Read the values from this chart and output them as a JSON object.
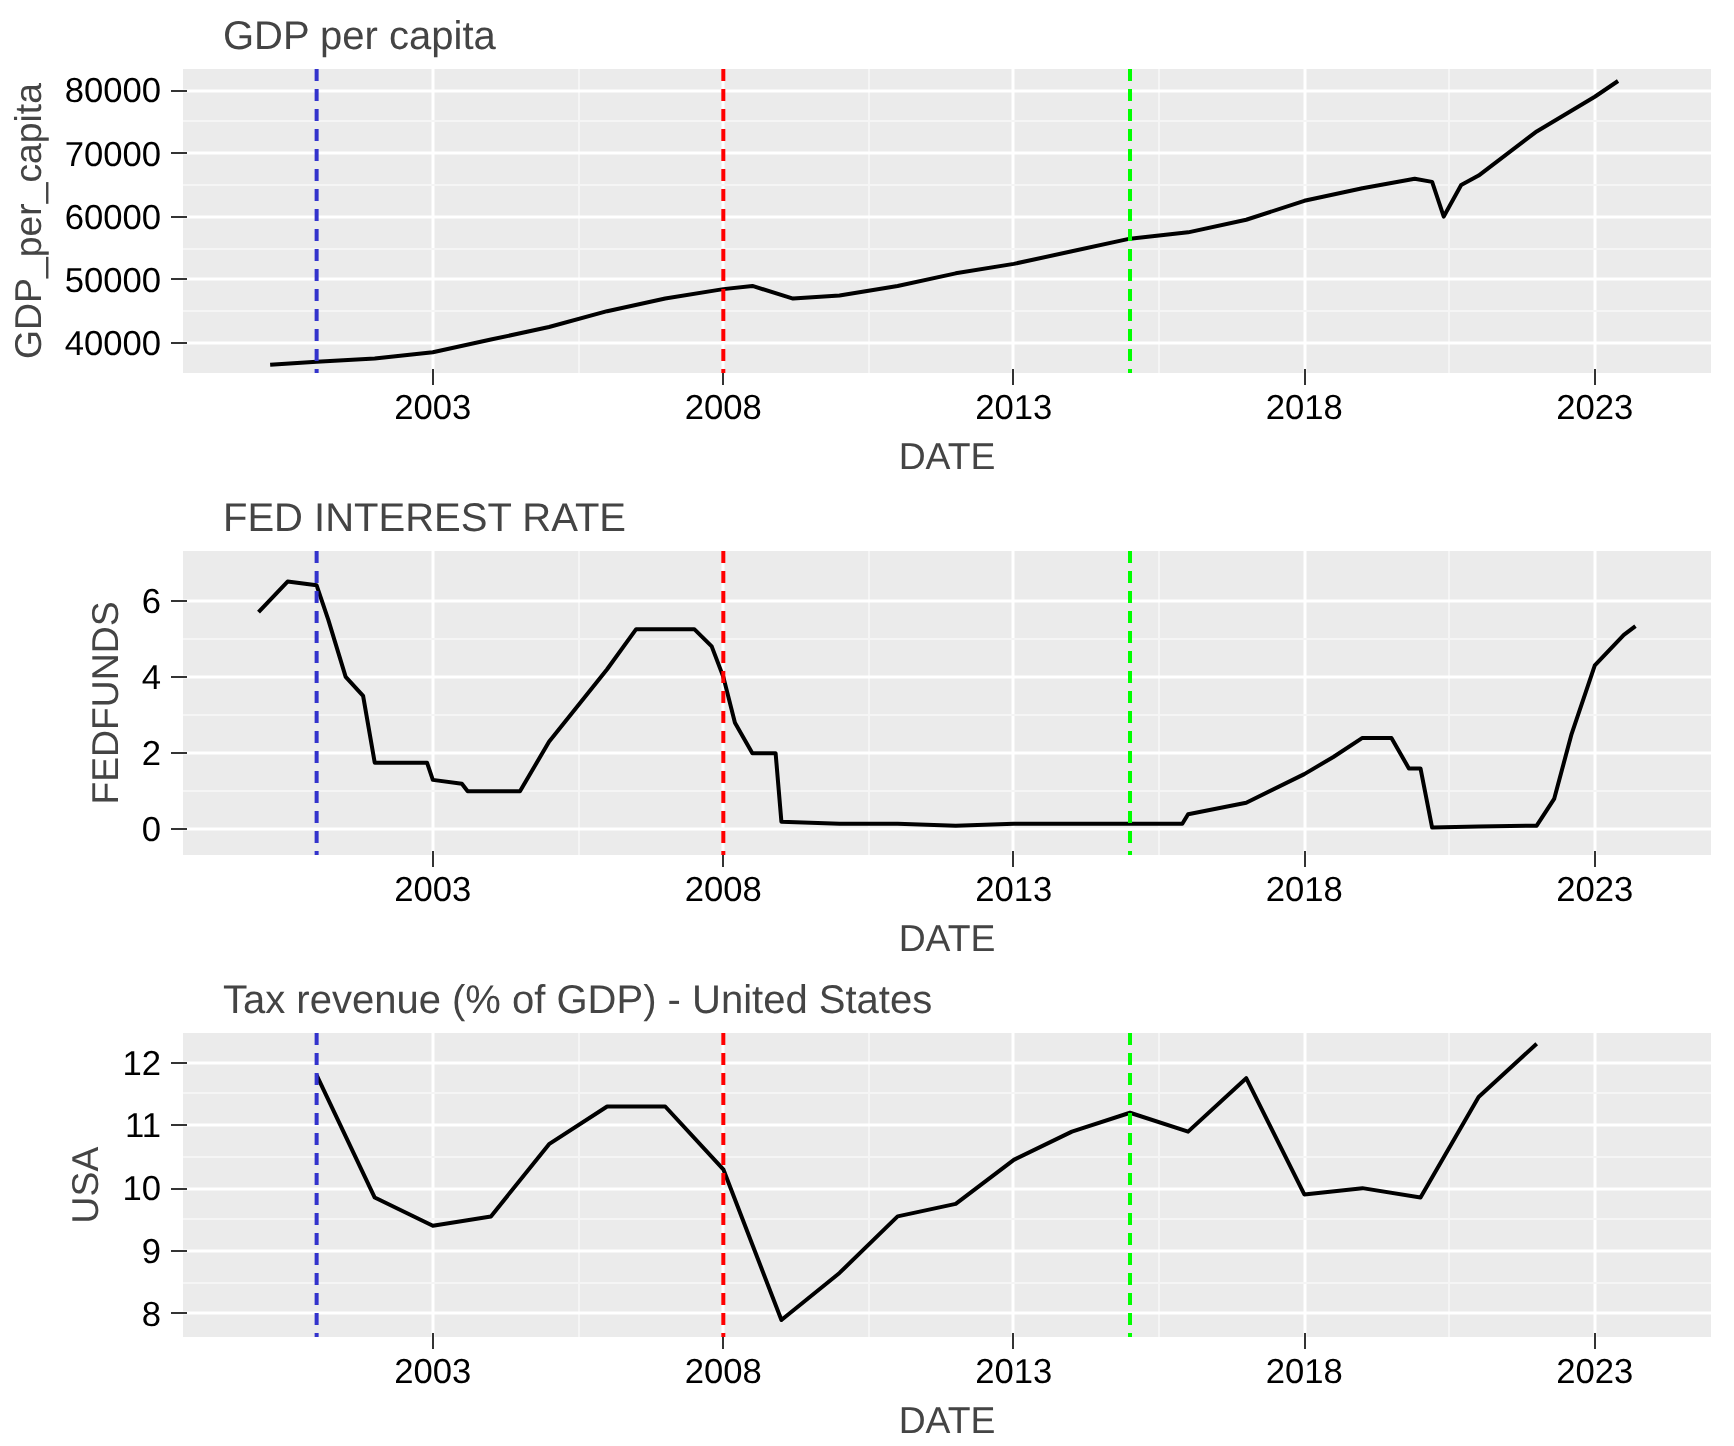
{
  "chart_data": [
    {
      "type": "line",
      "title": "GDP per capita",
      "xlabel": "DATE",
      "ylabel": "GDP_per_capita",
      "xlim": [
        1998.7,
        2025.0
      ],
      "xticks": [
        2003,
        2008,
        2013,
        2018,
        2023
      ],
      "ylim": [
        35200,
        83400
      ],
      "yticks": [
        40000,
        50000,
        60000,
        70000,
        80000
      ],
      "grid": true,
      "line_style": "solid",
      "x": [
        2000.2,
        2001,
        2002,
        2003,
        2004,
        2005,
        2006,
        2007,
        2008,
        2008.5,
        2009.2,
        2010,
        2011,
        2012,
        2013,
        2014,
        2015,
        2016,
        2017,
        2018,
        2019,
        2019.9,
        2020.2,
        2020.4,
        2020.7,
        2021,
        2022,
        2023,
        2023.4
      ],
      "series": [
        {
          "color": "#000000",
          "values": [
            36500,
            37000,
            37500,
            38500,
            40500,
            42500,
            45000,
            47000,
            48500,
            49000,
            47000,
            47500,
            49000,
            51000,
            52500,
            54500,
            56500,
            57500,
            59500,
            62500,
            64500,
            66000,
            65500,
            60000,
            65000,
            66500,
            73500,
            79000,
            81500
          ]
        }
      ],
      "ref_lines": [
        {
          "axis": "x",
          "value": 2001,
          "color": "#3333cc",
          "line_style": "dashed"
        },
        {
          "axis": "x",
          "value": 2008,
          "color": "#ff0000",
          "line_style": "dashed"
        },
        {
          "axis": "x",
          "value": 2015,
          "color": "#00ff00",
          "line_style": "dashed"
        }
      ]
    },
    {
      "type": "line",
      "title": "FED INTEREST RATE",
      "xlabel": "DATE",
      "ylabel": "FEDFUNDS",
      "xlim": [
        1998.7,
        2025.0
      ],
      "xticks": [
        2003,
        2008,
        2013,
        2018,
        2023
      ],
      "ylim": [
        -0.67,
        7.3
      ],
      "yticks": [
        0,
        2,
        4,
        6
      ],
      "grid": true,
      "line_style": "solid",
      "x": [
        2000.0,
        2000.5,
        2001.0,
        2001.2,
        2001.5,
        2001.8,
        2002.0,
        2002.9,
        2003.0,
        2003.5,
        2003.6,
        2004.5,
        2005,
        2006,
        2006.5,
        2007.5,
        2007.8,
        2008.0,
        2008.2,
        2008.5,
        2008.9,
        2009.0,
        2010,
        2011,
        2012,
        2013,
        2015.9,
        2016.0,
        2017,
        2018,
        2018.5,
        2019.0,
        2019.5,
        2019.8,
        2020.0,
        2020.2,
        2021,
        2022.0,
        2022.3,
        2022.6,
        2023.0,
        2023.5,
        2023.7
      ],
      "series": [
        {
          "color": "#000000",
          "values": [
            5.7,
            6.5,
            6.4,
            5.5,
            4.0,
            3.5,
            1.75,
            1.75,
            1.3,
            1.2,
            1.0,
            1.0,
            2.3,
            4.2,
            5.25,
            5.25,
            4.8,
            4.0,
            2.8,
            2.0,
            2.0,
            0.2,
            0.15,
            0.15,
            0.1,
            0.15,
            0.15,
            0.4,
            0.7,
            1.45,
            1.9,
            2.4,
            2.4,
            1.6,
            1.6,
            0.05,
            0.08,
            0.1,
            0.8,
            2.5,
            4.3,
            5.1,
            5.33
          ]
        }
      ],
      "ref_lines": [
        {
          "axis": "x",
          "value": 2001,
          "color": "#3333cc",
          "line_style": "dashed"
        },
        {
          "axis": "x",
          "value": 2008,
          "color": "#ff0000",
          "line_style": "dashed"
        },
        {
          "axis": "x",
          "value": 2015,
          "color": "#00ff00",
          "line_style": "dashed"
        }
      ]
    },
    {
      "type": "line",
      "title": "Tax revenue (% of GDP) - United States",
      "xlabel": "DATE",
      "ylabel": "USA",
      "xlim": [
        1998.7,
        2025.0
      ],
      "xticks": [
        2003,
        2008,
        2013,
        2018,
        2023
      ],
      "ylim": [
        7.63,
        12.47
      ],
      "yticks": [
        8,
        9,
        10,
        11,
        12
      ],
      "grid": true,
      "line_style": "solid",
      "x": [
        2001,
        2002,
        2003,
        2004,
        2005,
        2006,
        2007,
        2008,
        2009,
        2010,
        2011,
        2012,
        2013,
        2014,
        2015,
        2016,
        2017,
        2018,
        2019,
        2020,
        2021,
        2022
      ],
      "series": [
        {
          "color": "#000000",
          "values": [
            11.8,
            9.85,
            9.4,
            9.55,
            10.7,
            11.3,
            11.3,
            10.3,
            7.9,
            8.65,
            9.55,
            9.75,
            10.45,
            10.9,
            11.2,
            10.9,
            11.75,
            9.9,
            10.0,
            9.85,
            11.45,
            12.3
          ]
        }
      ],
      "ref_lines": [
        {
          "axis": "x",
          "value": 2001,
          "color": "#3333cc",
          "line_style": "dashed"
        },
        {
          "axis": "x",
          "value": 2008,
          "color": "#ff0000",
          "line_style": "dashed"
        },
        {
          "axis": "x",
          "value": 2015,
          "color": "#00ff00",
          "line_style": "dashed"
        }
      ]
    }
  ]
}
